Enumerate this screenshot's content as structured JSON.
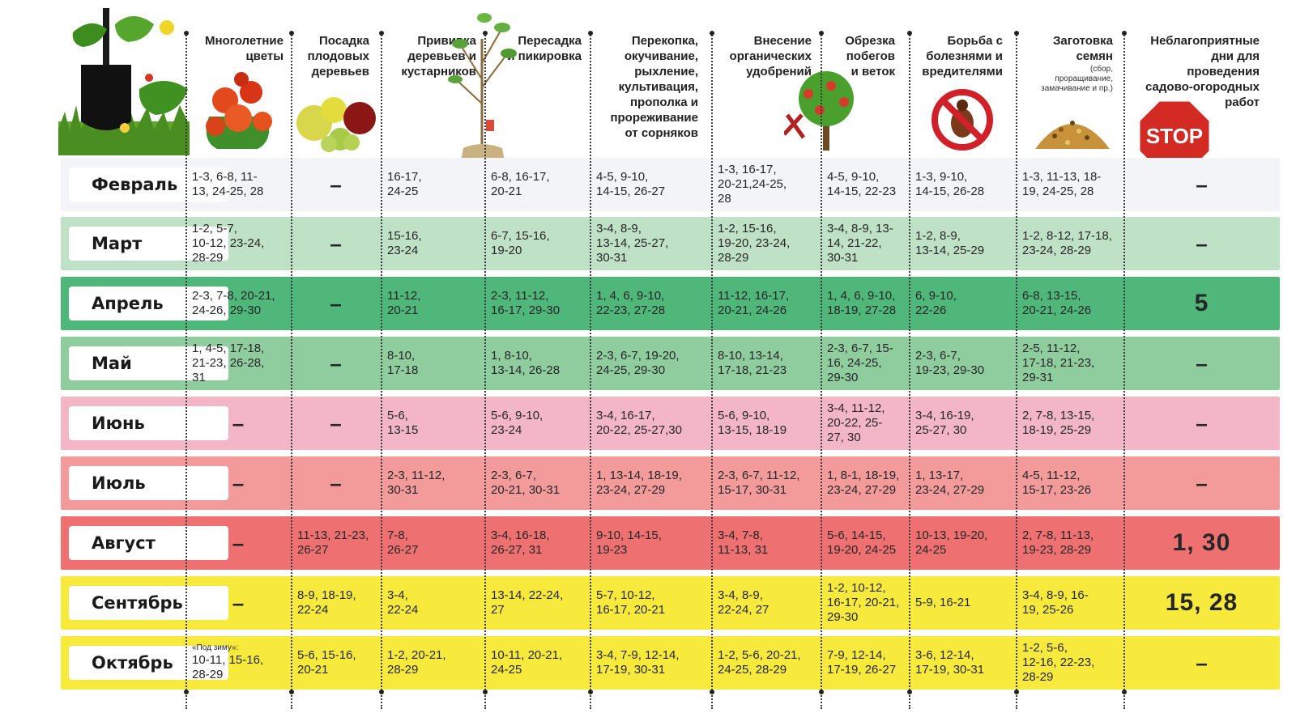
{
  "header": {
    "columns": [
      {
        "key": "perennials",
        "title": "Многолетние\nцветы"
      },
      {
        "key": "fruit_planting",
        "title": "Посадка\nплодовых\nдеревьев"
      },
      {
        "key": "grafting",
        "title": "Прививка\nдеревьев и\nкустарников"
      },
      {
        "key": "transplanting",
        "title": "Пересадка\nи пикировка"
      },
      {
        "key": "digging",
        "title": "Перекопка,\nокучивание,\nрыхление,\nкультивация,\nпрополка и\nпрореживание\nот сорняков"
      },
      {
        "key": "fertilizing",
        "title": "Внесение\nорганических\nудобрений"
      },
      {
        "key": "pruning",
        "title": "Обрезка\nпобегов\nи веток"
      },
      {
        "key": "pest_control",
        "title": "Борьба с\nболезнями и\nвредителями"
      },
      {
        "key": "seeds",
        "title": "Заготовка\nсемян",
        "subtitle": "(сбор,\nпроращивание,\nзамачивание и пр.)"
      },
      {
        "key": "unfavorable",
        "title": "Неблагоприятные\nдни для\nпроведения\nсадово-огородных\nработ"
      }
    ],
    "stop_sign": "STOP"
  },
  "colors": {
    "feb": "#f3f4f8",
    "mar": "#bfe2c6",
    "apr": "#4fb77a",
    "may": "#8fcd9f",
    "jun": "#f2b6c7",
    "jul": "#f39a9a",
    "aug": "#ee7071",
    "sep": "#f8ea3d",
    "oct": "#f8ea3d"
  },
  "rows": [
    {
      "month": "Февраль",
      "color": "#f3f4f8",
      "cells": [
        "1-3, 6-8, 11-\n13, 24-25, 28",
        "–",
        "16-17,\n24-25",
        "6-8, 16-17,\n20-21",
        "4-5, 9-10,\n14-15, 26-27",
        "1-3, 16-17,\n20-21,24-25,\n28",
        "4-5, 9-10,\n14-15, 22-23",
        "1-3, 9-10,\n14-15, 26-28",
        "1-3, 11-13, 18-\n19, 24-25, 28",
        "–"
      ]
    },
    {
      "month": "Март",
      "color": "#bfe2c6",
      "cells": [
        "1-2, 5-7,\n10-12, 23-24,\n28-29",
        "–",
        "15-16,\n23-24",
        "6-7, 15-16,\n19-20",
        "3-4, 8-9,\n13-14, 25-27,\n30-31",
        "1-2, 15-16,\n19-20, 23-24,\n28-29",
        "3-4, 8-9, 13-\n14, 21-22,\n30-31",
        "1-2, 8-9,\n13-14, 25-29",
        "1-2, 8-12, 17-18,\n23-24, 28-29",
        "–"
      ]
    },
    {
      "month": "Апрель",
      "color": "#4fb77a",
      "cells": [
        "2-3, 7-8, 20-21,\n24-26, 29-30",
        "–",
        "11-12,\n20-21",
        "2-3, 11-12,\n16-17, 29-30",
        "1, 4, 6, 9-10,\n22-23, 27-28",
        "11-12, 16-17,\n20-21, 24-26",
        "1, 4, 6, 9-10,\n18-19, 27-28",
        "6, 9-10,\n22-26",
        "6-8, 13-15,\n20-21, 24-26",
        "5"
      ]
    },
    {
      "month": "Май",
      "color": "#8fcd9f",
      "cells": [
        "1, 4-5, 17-18,\n21-23, 26-28,\n31",
        "–",
        "8-10,\n17-18",
        "1, 8-10,\n13-14, 26-28",
        "2-3, 6-7, 19-20,\n24-25, 29-30",
        "8-10, 13-14,\n17-18, 21-23",
        "2-3, 6-7, 15-\n16, 24-25,\n29-30",
        "2-3, 6-7,\n19-23, 29-30",
        "2-5, 11-12,\n17-18, 21-23,\n29-31",
        "–"
      ]
    },
    {
      "month": "Июнь",
      "color": "#f2b6c7",
      "cells": [
        "–",
        "–",
        "5-6,\n13-15",
        "5-6, 9-10,\n23-24",
        "3-4, 16-17,\n20-22, 25-27,30",
        "5-6, 9-10,\n13-15, 18-19",
        "3-4, 11-12,\n20-22, 25-\n27, 30",
        "3-4, 16-19,\n25-27, 30",
        "2, 7-8, 13-15,\n18-19, 25-29",
        "–"
      ]
    },
    {
      "month": "Июль",
      "color": "#f39a9a",
      "cells": [
        "–",
        "–",
        "2-3, 11-12,\n30-31",
        "2-3, 6-7,\n20-21, 30-31",
        "1, 13-14, 18-19,\n23-24, 27-29",
        "2-3, 6-7, 11-12,\n15-17, 30-31",
        "1, 8-1, 18-19,\n23-24, 27-29",
        "1, 13-17,\n23-24, 27-29",
        "4-5, 11-12,\n15-17, 23-26",
        "–"
      ]
    },
    {
      "month": "Август",
      "color": "#ee7071",
      "cells": [
        "–",
        "11-13, 21-23,\n26-27",
        "7-8,\n26-27",
        "3-4, 16-18,\n26-27, 31",
        "9-10, 14-15,\n19-23",
        "3-4, 7-8,\n11-13, 31",
        "5-6, 14-15,\n19-20, 24-25",
        "10-13, 19-20,\n24-25",
        "2, 7-8, 11-13,\n19-23, 28-29",
        "1, 30"
      ]
    },
    {
      "month": "Сентябрь",
      "color": "#f8ea3d",
      "cells": [
        "–",
        "8-9, 18-19,\n22-24",
        "3-4,\n22-24",
        "13-14, 22-24,\n27",
        "5-7, 10-12,\n16-17, 20-21",
        "3-4, 8-9,\n22-24, 27",
        "1-2, 10-12,\n16-17, 20-21,\n29-30",
        "5-9, 16-21",
        "3-4, 8-9, 16-\n19, 25-26",
        "15, 28"
      ]
    },
    {
      "month": "Октябрь",
      "color": "#f8ea3d",
      "note": "«Под зиму»:",
      "cells": [
        "10-11, 15-16,\n28-29",
        "5-6, 15-16,\n20-21",
        "1-2, 20-21,\n28-29",
        "10-11, 20-21,\n24-25",
        "3-4, 7-9, 12-14,\n17-19, 30-31",
        "1-2, 5-6, 20-21,\n24-25, 28-29",
        "7-9, 12-14,\n17-19, 26-27",
        "3-6, 12-14,\n17-19, 30-31",
        "1-2, 5-6,\n12-16, 22-23,\n28-29",
        "–"
      ]
    }
  ]
}
